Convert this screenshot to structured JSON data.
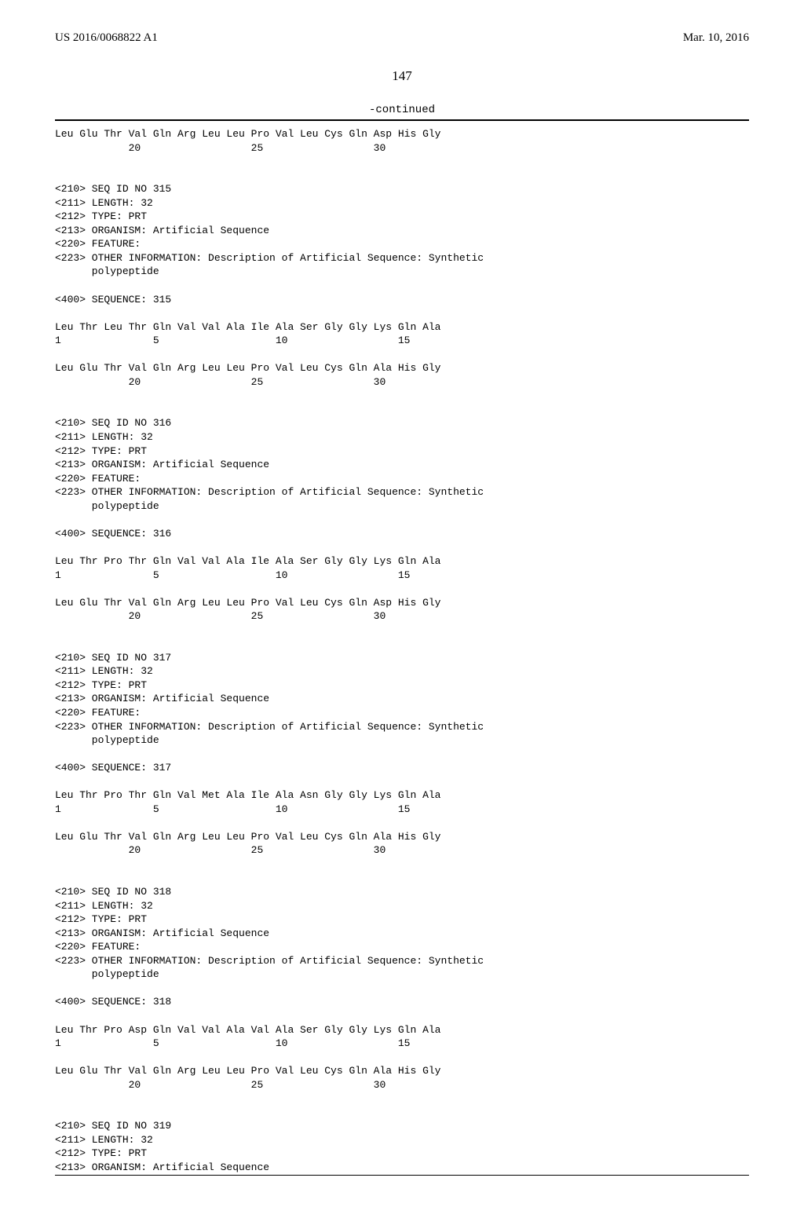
{
  "header": {
    "left": "US 2016/0068822 A1",
    "right": "Mar. 10, 2016"
  },
  "page_number": "147",
  "continued_label": "-continued",
  "sequences": [
    {
      "lines": [
        "Leu Glu Thr Val Gln Arg Leu Leu Pro Val Leu Cys Gln Asp His Gly",
        "            20                  25                  30"
      ]
    },
    {
      "meta": [
        "<210> SEQ ID NO 315",
        "<211> LENGTH: 32",
        "<212> TYPE: PRT",
        "<213> ORGANISM: Artificial Sequence",
        "<220> FEATURE:",
        "<223> OTHER INFORMATION: Description of Artificial Sequence: Synthetic",
        "      polypeptide"
      ],
      "seq_header": "<400> SEQUENCE: 315",
      "lines": [
        "Leu Thr Leu Thr Gln Val Val Ala Ile Ala Ser Gly Gly Lys Gln Ala",
        "1               5                   10                  15",
        "",
        "Leu Glu Thr Val Gln Arg Leu Leu Pro Val Leu Cys Gln Ala His Gly",
        "            20                  25                  30"
      ]
    },
    {
      "meta": [
        "<210> SEQ ID NO 316",
        "<211> LENGTH: 32",
        "<212> TYPE: PRT",
        "<213> ORGANISM: Artificial Sequence",
        "<220> FEATURE:",
        "<223> OTHER INFORMATION: Description of Artificial Sequence: Synthetic",
        "      polypeptide"
      ],
      "seq_header": "<400> SEQUENCE: 316",
      "lines": [
        "Leu Thr Pro Thr Gln Val Val Ala Ile Ala Ser Gly Gly Lys Gln Ala",
        "1               5                   10                  15",
        "",
        "Leu Glu Thr Val Gln Arg Leu Leu Pro Val Leu Cys Gln Asp His Gly",
        "            20                  25                  30"
      ]
    },
    {
      "meta": [
        "<210> SEQ ID NO 317",
        "<211> LENGTH: 32",
        "<212> TYPE: PRT",
        "<213> ORGANISM: Artificial Sequence",
        "<220> FEATURE:",
        "<223> OTHER INFORMATION: Description of Artificial Sequence: Synthetic",
        "      polypeptide"
      ],
      "seq_header": "<400> SEQUENCE: 317",
      "lines": [
        "Leu Thr Pro Thr Gln Val Met Ala Ile Ala Asn Gly Gly Lys Gln Ala",
        "1               5                   10                  15",
        "",
        "Leu Glu Thr Val Gln Arg Leu Leu Pro Val Leu Cys Gln Ala His Gly",
        "            20                  25                  30"
      ]
    },
    {
      "meta": [
        "<210> SEQ ID NO 318",
        "<211> LENGTH: 32",
        "<212> TYPE: PRT",
        "<213> ORGANISM: Artificial Sequence",
        "<220> FEATURE:",
        "<223> OTHER INFORMATION: Description of Artificial Sequence: Synthetic",
        "      polypeptide"
      ],
      "seq_header": "<400> SEQUENCE: 318",
      "lines": [
        "Leu Thr Pro Asp Gln Val Val Ala Val Ala Ser Gly Gly Lys Gln Ala",
        "1               5                   10                  15",
        "",
        "Leu Glu Thr Val Gln Arg Leu Leu Pro Val Leu Cys Gln Ala His Gly",
        "            20                  25                  30"
      ]
    },
    {
      "meta": [
        "<210> SEQ ID NO 319",
        "<211> LENGTH: 32",
        "<212> TYPE: PRT",
        "<213> ORGANISM: Artificial Sequence"
      ]
    }
  ]
}
